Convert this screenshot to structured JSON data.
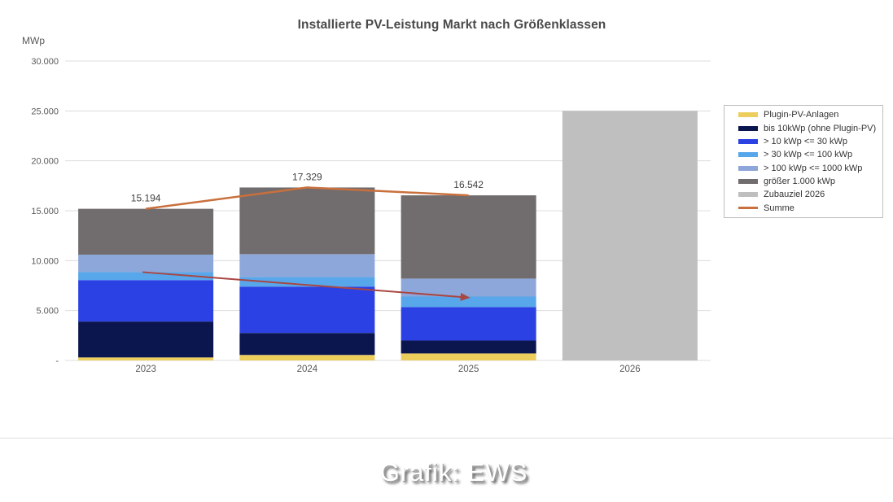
{
  "colors": {
    "background": "#FFFFFF",
    "gridline": "#DCDCDC",
    "axis_text": "#595959",
    "label_text": "#404040",
    "title_text": "#4A4A4A",
    "legend_border": "#BFBFBF",
    "divider": "#DEDEDE"
  },
  "chart_data": {
    "type": "bar",
    "variant": "stacked-columns-with-total-line-and-target-bar",
    "title": "Installierte PV-Leistung Markt nach Größenklassen",
    "unit": "MWp",
    "categories": [
      "2023",
      "2024",
      "2025",
      "2026"
    ],
    "series": [
      {
        "name": "Plugin-PV-Anlagen",
        "style": "bar",
        "color": "#EDCE5D",
        "values": [
          300,
          550,
          700,
          null
        ]
      },
      {
        "name": "bis 10kWp (ohne Plugin-PV)",
        "style": "bar",
        "color": "#0B164F",
        "values": [
          3600,
          2200,
          1300,
          null
        ]
      },
      {
        "name": "> 10 kWp <= 30 kWp",
        "style": "bar",
        "color": "#2B41E3",
        "values": [
          4150,
          4650,
          3350,
          null
        ]
      },
      {
        "name": "> 30 kWp <= 100 kWp",
        "style": "bar",
        "color": "#57A7EA",
        "values": [
          800,
          950,
          1050,
          null
        ]
      },
      {
        "name": "> 100 kWp <= 1000 kWp",
        "style": "bar",
        "color": "#8EA7DA",
        "values": [
          1750,
          2300,
          1800,
          null
        ]
      },
      {
        "name": "größer 1.000 kWp",
        "style": "bar",
        "color": "#716C6D",
        "values": [
          4594,
          6679,
          8342,
          null
        ]
      },
      {
        "name": "Zubauziel 2026",
        "style": "bar",
        "color": "#BFBFBF",
        "values": [
          null,
          null,
          null,
          25000
        ]
      },
      {
        "name": "Summe",
        "style": "line",
        "color": "#C9703D",
        "values": [
          15194,
          17329,
          16542,
          null
        ]
      }
    ],
    "total_labels": [
      "15.194",
      "17.329",
      "16.542",
      ""
    ],
    "ylim": [
      0,
      30000
    ],
    "ytick_interval": 5000,
    "ytick_labels": [
      "30.000",
      "25.000",
      "20.000",
      "15.000",
      "10.000",
      "5.000",
      "-"
    ],
    "grid": "horizontal",
    "legend_position": "right",
    "annotation_arrow": {
      "from_category": "2023",
      "from_value": 8850,
      "to_category": "2025",
      "to_value": 6300,
      "color": "#A94743"
    }
  },
  "footer": {
    "credit": "Grafik: EWS"
  }
}
